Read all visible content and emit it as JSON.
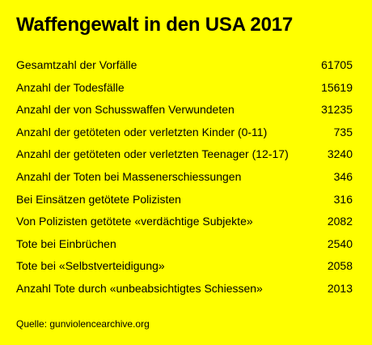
{
  "colors": {
    "background": "#ffff00",
    "text": "#000000"
  },
  "chart_data": {
    "type": "table",
    "title": "Waffengewalt in den USA 2017",
    "rows": [
      {
        "label": "Gesamtzahl der Vorfälle",
        "value": "61705"
      },
      {
        "label": "Anzahl der Todesfälle",
        "value": "15619"
      },
      {
        "label": "Anzahl der von Schusswaffen Verwundeten",
        "value": "31235"
      },
      {
        "label": "Anzahl der getöteten oder verletzten Kinder (0-11)",
        "value": "735"
      },
      {
        "label": "Anzahl der getöteten oder verletzten Teenager (12-17)",
        "value": "3240"
      },
      {
        "label": "Anzahl der Toten bei Massenerschiessungen",
        "value": "346"
      },
      {
        "label": "Bei Einsätzen getötete Polizisten",
        "value": "316"
      },
      {
        "label": "Von Polizisten getötete «verdächtige Subjekte»",
        "value": "2082"
      },
      {
        "label": "Tote bei Einbrüchen",
        "value": "2540"
      },
      {
        "label": "Tote bei «Selbstverteidigung»",
        "value": "2058"
      },
      {
        "label": "Anzahl Tote durch «unbeabsichtigtes Schiessen»",
        "value": "2013"
      }
    ],
    "source": "Quelle: gunviolencearchive.org"
  }
}
